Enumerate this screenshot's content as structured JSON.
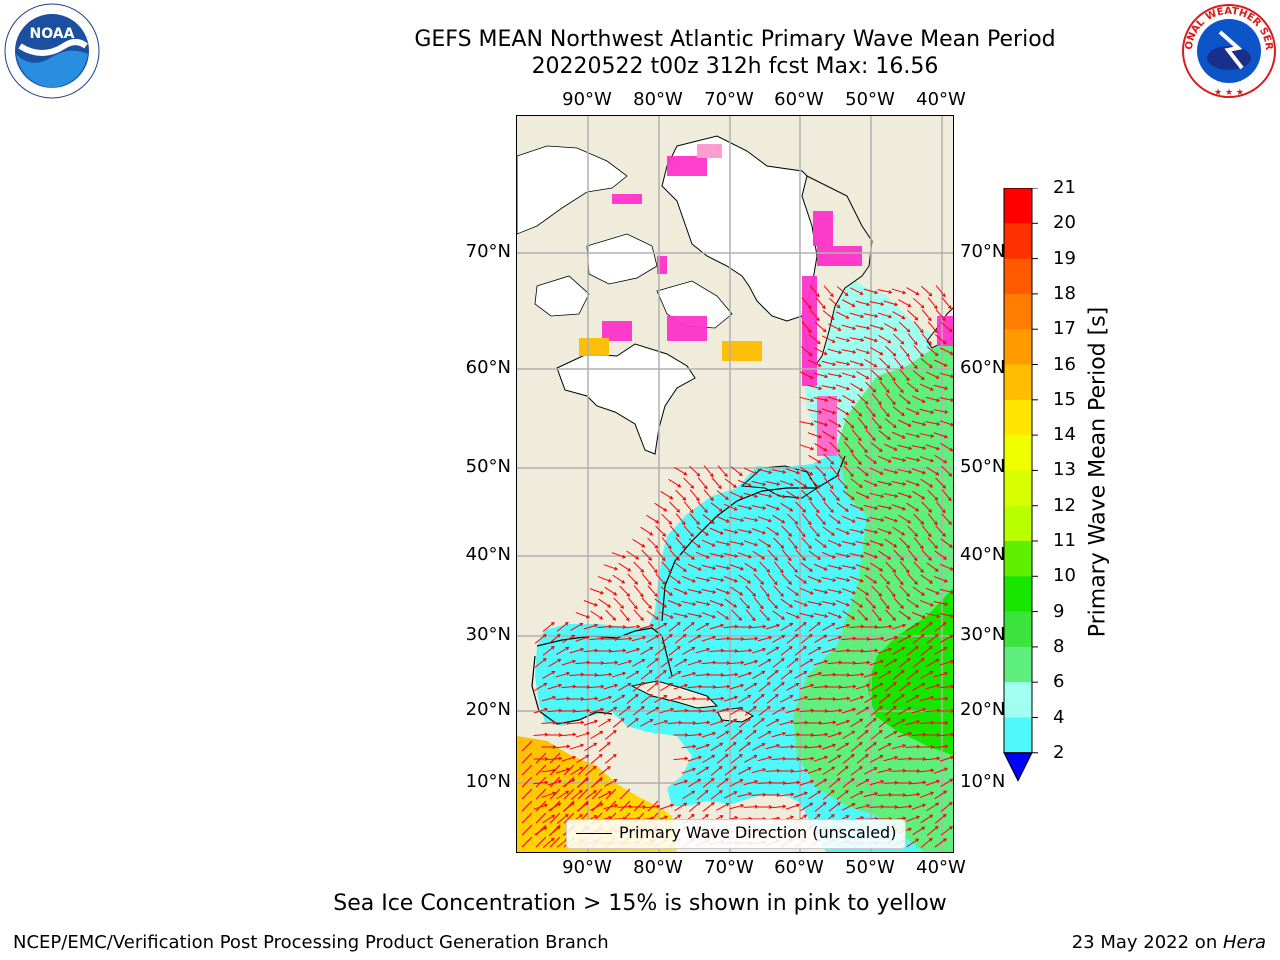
{
  "title": {
    "line1": "GEFS MEAN Northwest Atlantic Primary Wave Mean Period",
    "line2": "20220522 t00z 312h fcst   Max: 16.56"
  },
  "map": {
    "lon_labels": [
      "90°W",
      "80°W",
      "70°W",
      "60°W",
      "50°W",
      "40°W"
    ],
    "lat_labels": [
      "70°N",
      "60°N",
      "50°N",
      "40°N",
      "30°N",
      "20°N",
      "10°N"
    ],
    "colors": {
      "land": "#efecdc",
      "ice_free_water_mask": "#ffffff",
      "gridline": "#b0b0b0",
      "coast": "#000000",
      "arrows": "#ff0000"
    },
    "legend_label": "Primary Wave Direction (unscaled)"
  },
  "colorbar": {
    "label": "Primary Wave Mean Period [s]",
    "ticks": [
      "21",
      "20",
      "19",
      "18",
      "17",
      "16",
      "15",
      "14",
      "13",
      "12",
      "11",
      "10",
      "9",
      "8",
      "6",
      "4",
      "2"
    ],
    "colors": [
      "#ff0000",
      "#ff3000",
      "#ff5a00",
      "#ff7d00",
      "#ff9b00",
      "#ffbd00",
      "#ffe600",
      "#f0ff00",
      "#d8ff00",
      "#b8ff00",
      "#5ef000",
      "#19e600",
      "#3de33d",
      "#5fef7e",
      "#a0fff0",
      "#4ff8fb",
      "#00e8ff",
      "#00aaff",
      "#005aff"
    ],
    "extend_color": "#0000ff"
  },
  "footnote": "Sea Ice Concentration > 15% is shown in pink to yellow",
  "credits": {
    "left": "NCEP/EMC/Verification Post Processing Product Generation Branch",
    "right_prefix": "23 May 2022 on ",
    "right_machine": "Hera"
  },
  "logos": {
    "noaa": {
      "icon": "noaa-logo",
      "text": "NOAA"
    },
    "nws": {
      "icon": "nws-logo",
      "text": "NATIONAL WEATHER SERVICE"
    }
  }
}
